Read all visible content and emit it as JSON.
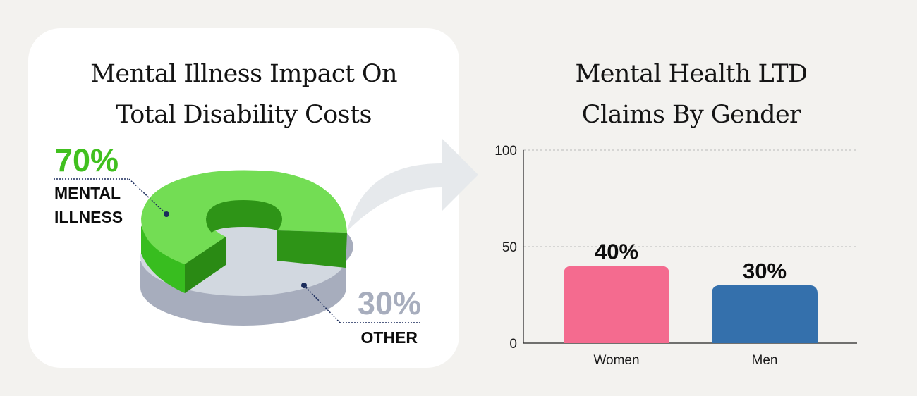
{
  "left_chart": {
    "title_lines": [
      "Mental Illness Impact On",
      "Total Disability Costs"
    ],
    "mental": {
      "percent_label": "70%",
      "label_lines": [
        "MENTAL",
        "ILLNESS"
      ],
      "value": 70
    },
    "other": {
      "percent_label": "30%",
      "label_lines": [
        "OTHER"
      ],
      "value": 30
    }
  },
  "chart_data": [
    {
      "type": "pie",
      "title": "Mental Illness Impact On Total Disability Costs",
      "categories": [
        "MENTAL ILLNESS",
        "OTHER"
      ],
      "values": [
        70,
        30
      ],
      "colors": [
        "#72dd54",
        "#d2d8e0"
      ]
    },
    {
      "type": "bar",
      "title": "Mental Health LTD Claims By Gender",
      "categories": [
        "Women",
        "Men"
      ],
      "values": [
        40,
        30
      ],
      "data_labels": [
        "40%",
        "30%"
      ],
      "colors": [
        "#f46b8f",
        "#3470ac"
      ],
      "ylim": [
        0,
        100
      ],
      "yticks": [
        0,
        50,
        100
      ],
      "xlabel": "",
      "ylabel": "",
      "grid": "horizontal dashed"
    }
  ],
  "right_chart": {
    "title_lines": [
      "Mental Health LTD",
      "Claims By Gender"
    ]
  }
}
